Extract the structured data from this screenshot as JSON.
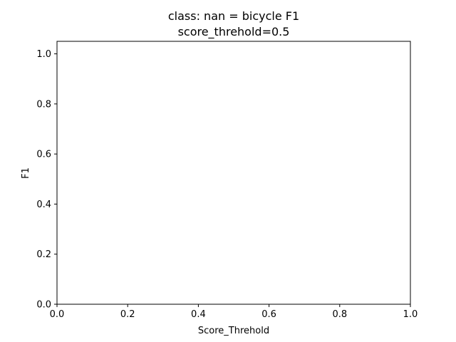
{
  "chart_data": {
    "type": "line",
    "title_line1": "class: nan = bicycle F1",
    "title_line2": "score_threhold=0.5",
    "xlabel": "Score_Threhold",
    "ylabel": "F1",
    "xlim": [
      0.0,
      1.0
    ],
    "ylim": [
      0.0,
      1.05
    ],
    "xticks": [
      "0.0",
      "0.2",
      "0.4",
      "0.6",
      "0.8",
      "1.0"
    ],
    "xtick_values": [
      0.0,
      0.2,
      0.4,
      0.6,
      0.8,
      1.0
    ],
    "yticks": [
      "0.0",
      "0.2",
      "0.4",
      "0.6",
      "0.8",
      "1.0"
    ],
    "ytick_values": [
      0.0,
      0.2,
      0.4,
      0.6,
      0.8,
      1.0
    ],
    "grid": false,
    "series": []
  }
}
